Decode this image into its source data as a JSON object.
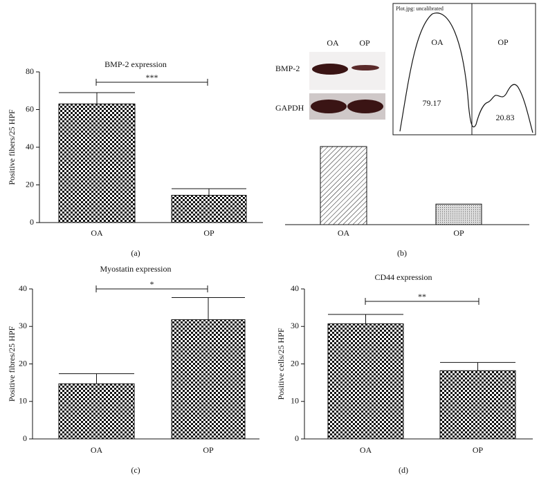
{
  "chart_data": [
    {
      "type": "bar",
      "title": "BMP-2 expression",
      "y_label": "Positive fibers/25 HPF",
      "categories": [
        "OA",
        "OP"
      ],
      "values": [
        63,
        14.5
      ],
      "errors": [
        6,
        3.5
      ],
      "ylim": [
        0,
        80
      ],
      "yticks": [
        0,
        20,
        40,
        60,
        80
      ],
      "significance": "***",
      "panel_label": "(a)"
    },
    {
      "type": "bar",
      "categories": [
        "OA",
        "OP"
      ],
      "values": [
        79.17,
        20.83
      ],
      "panel_label": "(b)",
      "blot": {
        "columns": [
          "OA",
          "OP"
        ],
        "rows": [
          "BMP-2",
          "GAPDH"
        ]
      },
      "inset": {
        "title": "Plot.jpg: uncalibrated",
        "labels": [
          "OA",
          "OP"
        ]
      }
    },
    {
      "type": "bar",
      "title": "Myostatin expression",
      "y_label": "Positive fibres/25 HPF",
      "categories": [
        "OA",
        "OP"
      ],
      "values": [
        14.7,
        31.8
      ],
      "errors": [
        2.7,
        5.9
      ],
      "ylim": [
        0,
        40
      ],
      "yticks": [
        0,
        10,
        20,
        30,
        40
      ],
      "significance": "*",
      "panel_label": "(c)"
    },
    {
      "type": "bar",
      "title": "CD44 expression",
      "y_label": "Positive cells/25 HPF",
      "categories": [
        "OA",
        "OP"
      ],
      "values": [
        30.7,
        18.2
      ],
      "errors": [
        2.5,
        2.2
      ],
      "ylim": [
        0,
        40
      ],
      "yticks": [
        0,
        10,
        20,
        30,
        40
      ],
      "significance": "**",
      "panel_label": "(d)"
    }
  ]
}
